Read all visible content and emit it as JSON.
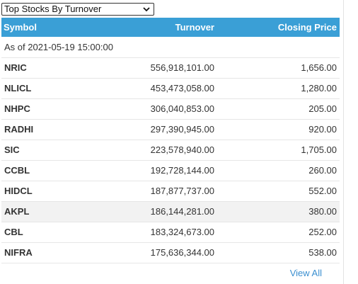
{
  "selector": {
    "selected": "Top Stocks By Turnover",
    "icon": "chevron-down-icon"
  },
  "table": {
    "headers": {
      "symbol": "Symbol",
      "turnover": "Turnover",
      "closing_price": "Closing Price"
    },
    "as_of": "As of 2021-05-19 15:00:00",
    "header_color": "#3a9fd6",
    "rows": [
      {
        "symbol": "NRIC",
        "turnover": "556,918,101.00",
        "closing_price": "1,656.00"
      },
      {
        "symbol": "NLICL",
        "turnover": "453,473,058.00",
        "closing_price": "1,280.00"
      },
      {
        "symbol": "NHPC",
        "turnover": "306,040,853.00",
        "closing_price": "205.00"
      },
      {
        "symbol": "RADHI",
        "turnover": "297,390,945.00",
        "closing_price": "920.00"
      },
      {
        "symbol": "SIC",
        "turnover": "223,578,940.00",
        "closing_price": "1,705.00"
      },
      {
        "symbol": "CCBL",
        "turnover": "192,728,144.00",
        "closing_price": "260.00"
      },
      {
        "symbol": "HIDCL",
        "turnover": "187,877,737.00",
        "closing_price": "552.00"
      },
      {
        "symbol": "AKPL",
        "turnover": "186,144,281.00",
        "closing_price": "380.00"
      },
      {
        "symbol": "CBL",
        "turnover": "183,324,673.00",
        "closing_price": "252.00"
      },
      {
        "symbol": "NIFRA",
        "turnover": "175,636,344.00",
        "closing_price": "538.00"
      }
    ]
  },
  "footer": {
    "view_all": "View All",
    "link_color": "#3a8fd0"
  }
}
